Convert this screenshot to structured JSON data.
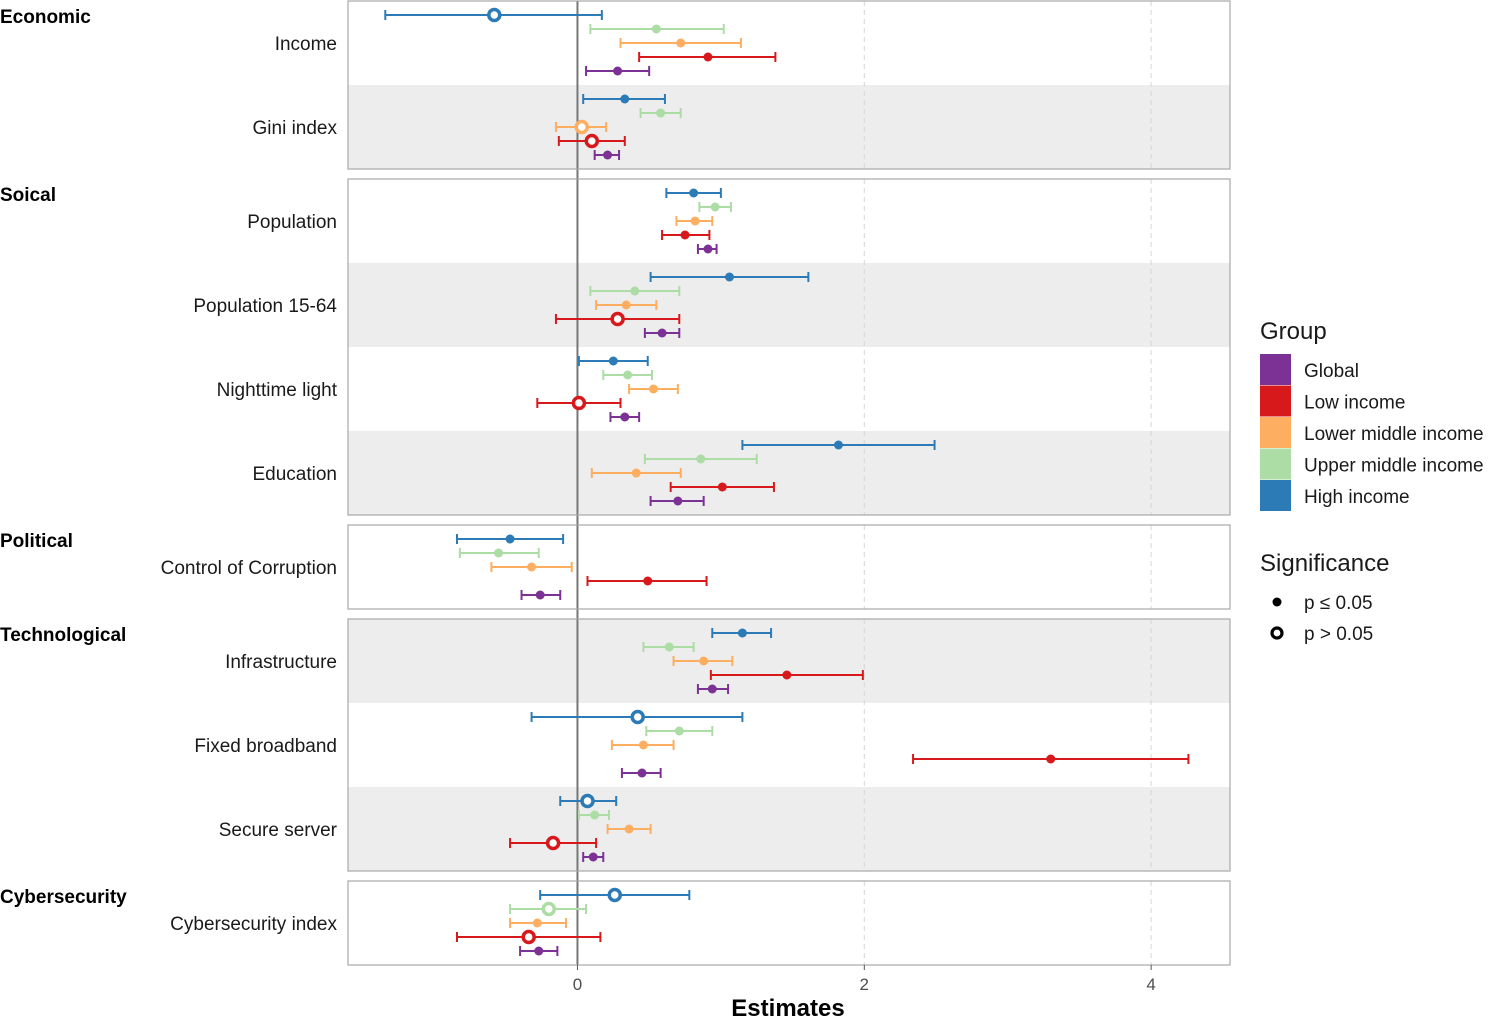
{
  "chart_data": {
    "type": "forest",
    "xlabel": "Estimates",
    "xlim": [
      -1.6,
      4.55
    ],
    "xticks": [
      0,
      2,
      4
    ],
    "xtick_labels": [
      "0",
      "2",
      "4"
    ],
    "reference_line": 0,
    "groups": [
      {
        "name": "Global",
        "color": "#7b3294"
      },
      {
        "name": "Low income",
        "color": "#d7191c"
      },
      {
        "name": "Lower middle income",
        "color": "#fdae61"
      },
      {
        "name": "Upper middle income",
        "color": "#abdda4"
      },
      {
        "name": "High income",
        "color": "#2c7bb6"
      }
    ],
    "legend": {
      "group_title": "Group",
      "significance_title": "Significance",
      "significance_levels": [
        {
          "label": "p ≤ 0.05",
          "significant": true
        },
        {
          "label": "p > 0.05",
          "significant": false
        }
      ],
      "position": "right"
    },
    "panels": [
      {
        "category": "Economic",
        "variables": [
          {
            "name": "Income",
            "estimates": [
              {
                "group": "High income",
                "estimate": -0.58,
                "low": -1.34,
                "high": 0.17,
                "significant": false
              },
              {
                "group": "Upper middle income",
                "estimate": 0.55,
                "low": 0.09,
                "high": 1.02,
                "significant": true
              },
              {
                "group": "Lower middle income",
                "estimate": 0.72,
                "low": 0.3,
                "high": 1.14,
                "significant": true
              },
              {
                "group": "Low income",
                "estimate": 0.91,
                "low": 0.43,
                "high": 1.38,
                "significant": true
              },
              {
                "group": "Global",
                "estimate": 0.28,
                "low": 0.06,
                "high": 0.5,
                "significant": true
              }
            ]
          },
          {
            "name": "Gini index",
            "estimates": [
              {
                "group": "High income",
                "estimate": 0.33,
                "low": 0.04,
                "high": 0.61,
                "significant": true
              },
              {
                "group": "Upper middle income",
                "estimate": 0.58,
                "low": 0.44,
                "high": 0.72,
                "significant": true
              },
              {
                "group": "Lower middle income",
                "estimate": 0.03,
                "low": -0.15,
                "high": 0.2,
                "significant": false
              },
              {
                "group": "Low income",
                "estimate": 0.1,
                "low": -0.13,
                "high": 0.33,
                "significant": false
              },
              {
                "group": "Global",
                "estimate": 0.21,
                "low": 0.12,
                "high": 0.29,
                "significant": true
              }
            ]
          }
        ]
      },
      {
        "category": "Soical",
        "variables": [
          {
            "name": "Population",
            "estimates": [
              {
                "group": "High income",
                "estimate": 0.81,
                "low": 0.62,
                "high": 1.0,
                "significant": true
              },
              {
                "group": "Upper middle income",
                "estimate": 0.96,
                "low": 0.85,
                "high": 1.07,
                "significant": true
              },
              {
                "group": "Lower middle income",
                "estimate": 0.82,
                "low": 0.69,
                "high": 0.94,
                "significant": true
              },
              {
                "group": "Low income",
                "estimate": 0.75,
                "low": 0.59,
                "high": 0.92,
                "significant": true
              },
              {
                "group": "Global",
                "estimate": 0.91,
                "low": 0.84,
                "high": 0.97,
                "significant": true
              }
            ]
          },
          {
            "name": "Population 15-64",
            "estimates": [
              {
                "group": "High income",
                "estimate": 1.06,
                "low": 0.51,
                "high": 1.61,
                "significant": true
              },
              {
                "group": "Upper middle income",
                "estimate": 0.4,
                "low": 0.09,
                "high": 0.71,
                "significant": true
              },
              {
                "group": "Lower middle income",
                "estimate": 0.34,
                "low": 0.13,
                "high": 0.55,
                "significant": true
              },
              {
                "group": "Low income",
                "estimate": 0.28,
                "low": -0.15,
                "high": 0.71,
                "significant": false
              },
              {
                "group": "Global",
                "estimate": 0.59,
                "low": 0.47,
                "high": 0.71,
                "significant": true
              }
            ]
          },
          {
            "name": "Nighttime light",
            "estimates": [
              {
                "group": "High income",
                "estimate": 0.25,
                "low": 0.01,
                "high": 0.49,
                "significant": true
              },
              {
                "group": "Upper middle income",
                "estimate": 0.35,
                "low": 0.18,
                "high": 0.52,
                "significant": true
              },
              {
                "group": "Lower middle income",
                "estimate": 0.53,
                "low": 0.36,
                "high": 0.7,
                "significant": true
              },
              {
                "group": "Low income",
                "estimate": 0.01,
                "low": -0.28,
                "high": 0.3,
                "significant": false
              },
              {
                "group": "Global",
                "estimate": 0.33,
                "low": 0.23,
                "high": 0.43,
                "significant": true
              }
            ]
          },
          {
            "name": "Education",
            "estimates": [
              {
                "group": "High income",
                "estimate": 1.82,
                "low": 1.15,
                "high": 2.49,
                "significant": true
              },
              {
                "group": "Upper middle income",
                "estimate": 0.86,
                "low": 0.47,
                "high": 1.25,
                "significant": true
              },
              {
                "group": "Lower middle income",
                "estimate": 0.41,
                "low": 0.1,
                "high": 0.72,
                "significant": true
              },
              {
                "group": "Low income",
                "estimate": 1.01,
                "low": 0.65,
                "high": 1.37,
                "significant": true
              },
              {
                "group": "Global",
                "estimate": 0.7,
                "low": 0.51,
                "high": 0.88,
                "significant": true
              }
            ]
          }
        ]
      },
      {
        "category": "Political",
        "variables": [
          {
            "name": "Control of Corruption",
            "estimates": [
              {
                "group": "High income",
                "estimate": -0.47,
                "low": -0.84,
                "high": -0.1,
                "significant": true
              },
              {
                "group": "Upper middle income",
                "estimate": -0.55,
                "low": -0.82,
                "high": -0.27,
                "significant": true
              },
              {
                "group": "Lower middle income",
                "estimate": -0.32,
                "low": -0.6,
                "high": -0.04,
                "significant": true
              },
              {
                "group": "Low income",
                "estimate": 0.49,
                "low": 0.07,
                "high": 0.9,
                "significant": true
              },
              {
                "group": "Global",
                "estimate": -0.26,
                "low": -0.39,
                "high": -0.12,
                "significant": true
              }
            ]
          }
        ]
      },
      {
        "category": "Technological",
        "variables": [
          {
            "name": "Infrastructure",
            "estimates": [
              {
                "group": "High income",
                "estimate": 1.15,
                "low": 0.94,
                "high": 1.35,
                "significant": true
              },
              {
                "group": "Upper middle income",
                "estimate": 0.64,
                "low": 0.46,
                "high": 0.81,
                "significant": true
              },
              {
                "group": "Lower middle income",
                "estimate": 0.88,
                "low": 0.67,
                "high": 1.08,
                "significant": true
              },
              {
                "group": "Low income",
                "estimate": 1.46,
                "low": 0.93,
                "high": 1.99,
                "significant": true
              },
              {
                "group": "Global",
                "estimate": 0.94,
                "low": 0.84,
                "high": 1.05,
                "significant": true
              }
            ]
          },
          {
            "name": "Fixed broadband",
            "estimates": [
              {
                "group": "High income",
                "estimate": 0.42,
                "low": -0.32,
                "high": 1.15,
                "significant": false
              },
              {
                "group": "Upper middle income",
                "estimate": 0.71,
                "low": 0.48,
                "high": 0.94,
                "significant": true
              },
              {
                "group": "Lower middle income",
                "estimate": 0.46,
                "low": 0.24,
                "high": 0.67,
                "significant": true
              },
              {
                "group": "Low income",
                "estimate": 3.3,
                "low": 2.34,
                "high": 4.26,
                "significant": true
              },
              {
                "group": "Global",
                "estimate": 0.45,
                "low": 0.31,
                "high": 0.58,
                "significant": true
              }
            ]
          },
          {
            "name": "Secure server",
            "estimates": [
              {
                "group": "High income",
                "estimate": 0.07,
                "low": -0.12,
                "high": 0.27,
                "significant": false
              },
              {
                "group": "Upper middle income",
                "estimate": 0.12,
                "low": 0.01,
                "high": 0.22,
                "significant": true
              },
              {
                "group": "Lower middle income",
                "estimate": 0.36,
                "low": 0.21,
                "high": 0.51,
                "significant": true
              },
              {
                "group": "Low income",
                "estimate": -0.17,
                "low": -0.47,
                "high": 0.13,
                "significant": false
              },
              {
                "group": "Global",
                "estimate": 0.11,
                "low": 0.04,
                "high": 0.18,
                "significant": true
              }
            ]
          }
        ]
      },
      {
        "category": "Cybersecurity",
        "variables": [
          {
            "name": "Cybersecurity index",
            "estimates": [
              {
                "group": "High income",
                "estimate": 0.26,
                "low": -0.26,
                "high": 0.78,
                "significant": false
              },
              {
                "group": "Upper middle income",
                "estimate": -0.2,
                "low": -0.47,
                "high": 0.06,
                "significant": false
              },
              {
                "group": "Lower middle income",
                "estimate": -0.28,
                "low": -0.47,
                "high": -0.08,
                "significant": true
              },
              {
                "group": "Low income",
                "estimate": -0.34,
                "low": -0.84,
                "high": 0.16,
                "significant": false
              },
              {
                "group": "Global",
                "estimate": -0.27,
                "low": -0.4,
                "high": -0.14,
                "significant": true
              }
            ]
          }
        ]
      }
    ]
  }
}
